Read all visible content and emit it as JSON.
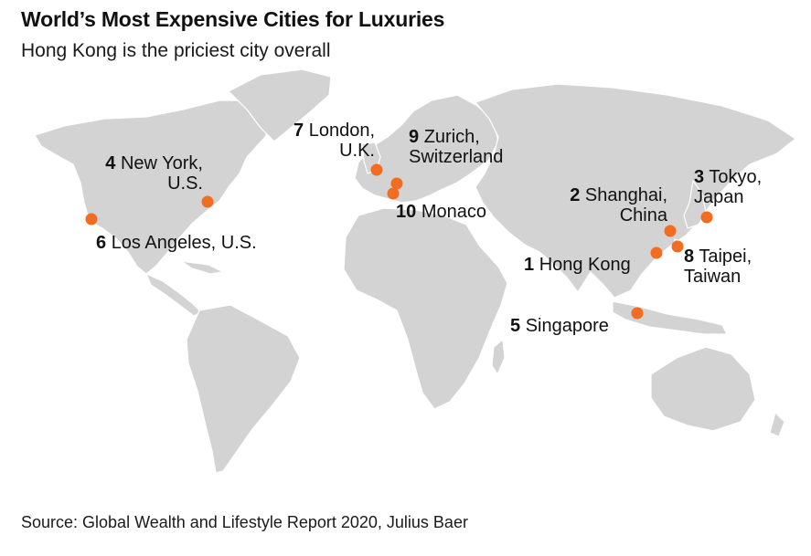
{
  "title": "World’s Most Expensive Cities for Luxuries",
  "subtitle": "Hong Kong is the priciest city overall",
  "source": "Source: Global Wealth and Lifestyle Report 2020, Julius Baer",
  "colors": {
    "marker": "#f26c22",
    "land": "#d3d3d3",
    "text": "#111111"
  },
  "cities": [
    {
      "rank": "1",
      "line1": "Hong Kong",
      "line2": ""
    },
    {
      "rank": "2",
      "line1": "Shanghai,",
      "line2": "China"
    },
    {
      "rank": "3",
      "line1": "Tokyo,",
      "line2": "Japan"
    },
    {
      "rank": "4",
      "line1": "New York,",
      "line2": "U.S."
    },
    {
      "rank": "5",
      "line1": "Singapore",
      "line2": ""
    },
    {
      "rank": "6",
      "line1": "Los Angeles, U.S.",
      "line2": ""
    },
    {
      "rank": "7",
      "line1": "London,",
      "line2": "U.K."
    },
    {
      "rank": "8",
      "line1": "Taipei,",
      "line2": "Taiwan"
    },
    {
      "rank": "9",
      "line1": "Zurich,",
      "line2": "Switzerland"
    },
    {
      "rank": "10",
      "line1": "Monaco",
      "line2": ""
    }
  ]
}
